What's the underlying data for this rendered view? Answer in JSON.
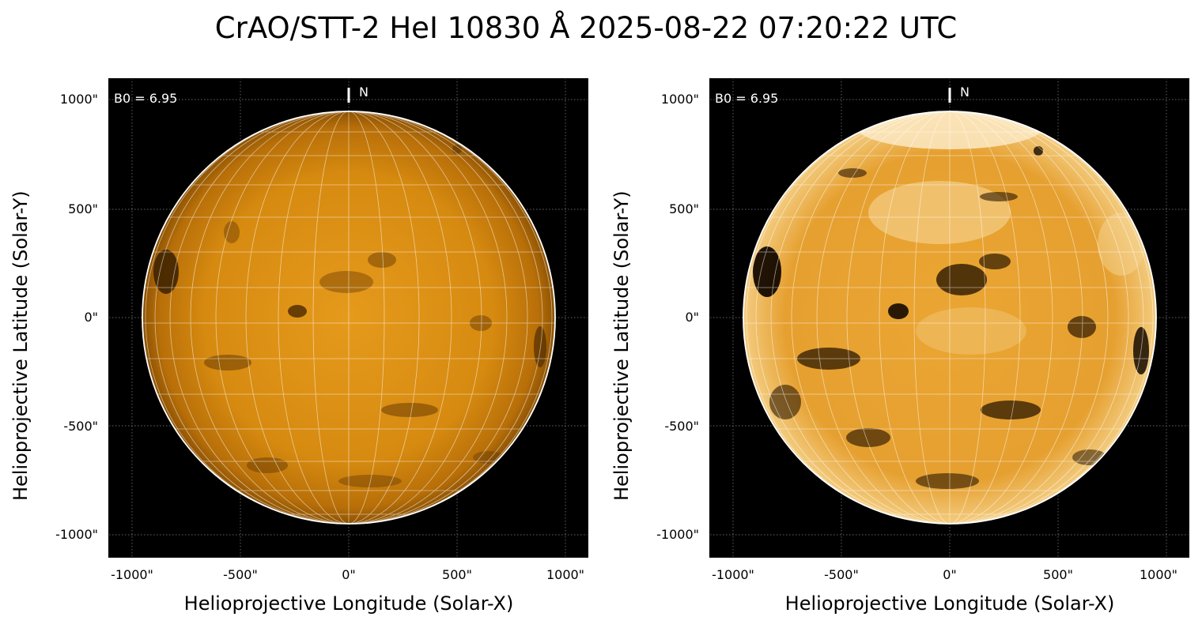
{
  "title": "CrAO/STT-2 HeI 10830 Å 2025-08-22 07:20:22 UTC",
  "colors": {
    "disk_left": "#d4870a",
    "disk_right": "#e8a830",
    "background": "#000000",
    "limb": "#ffffff",
    "grid": "#ffffff"
  },
  "panels": [
    {
      "b0_label": "B0 = 6.95",
      "north_label": "N",
      "x_tick_labels": [
        "-1000\"",
        "-500\"",
        "0\"",
        "500\"",
        "1000\""
      ],
      "y_tick_labels": [
        "1000\"",
        "500\"",
        "0\"",
        "-500\"",
        "-1000\""
      ],
      "xlabel": "Helioprojective Longitude (Solar-X)",
      "ylabel": "Helioprojective Latitude (Solar-Y)"
    },
    {
      "b0_label": "B0 = 6.95",
      "north_label": "N",
      "x_tick_labels": [
        "-1000\"",
        "-500\"",
        "0\"",
        "500\"",
        "1000\""
      ],
      "y_tick_labels": [
        "1000\"",
        "500\"",
        "0\"",
        "-500\"",
        "-1000\""
      ],
      "xlabel": "Helioprojective Longitude (Solar-X)",
      "ylabel": "Helioprojective Latitude (Solar-Y)"
    }
  ]
}
